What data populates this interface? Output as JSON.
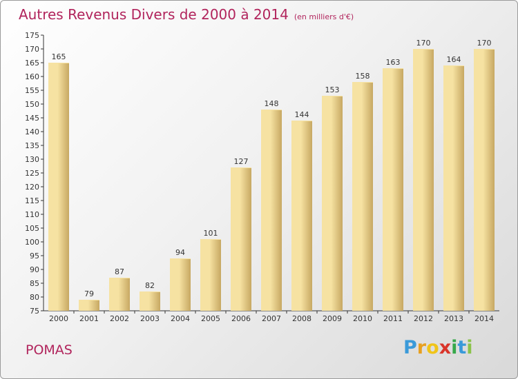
{
  "header": {
    "title": "Autres Revenus Divers de 2000 à 2014",
    "unit": "(en milliers d'€)"
  },
  "footer": {
    "commune": "POMAS",
    "brand_letters": [
      "P",
      "r",
      "o",
      "x",
      "i",
      "t",
      "i"
    ],
    "brand_colors": [
      "#3a9ad9",
      "#e8a020",
      "#f0c419",
      "#d9352a",
      "#36a84a",
      "#3a9ad9",
      "#8bc34a"
    ]
  },
  "colors": {
    "accent": "#b1245c",
    "bar_light": "#f6e2a2",
    "bar_dark": "#c7a862",
    "axis": "#333333"
  },
  "chart_data": {
    "type": "bar",
    "categories": [
      "2000",
      "2001",
      "2002",
      "2003",
      "2004",
      "2005",
      "2006",
      "2007",
      "2008",
      "2009",
      "2010",
      "2011",
      "2012",
      "2013",
      "2014"
    ],
    "values": [
      165,
      79,
      87,
      82,
      94,
      101,
      127,
      148,
      144,
      153,
      158,
      163,
      170,
      164,
      170
    ],
    "ylim": [
      75,
      175
    ],
    "ytick_step": 5,
    "grid": false
  }
}
